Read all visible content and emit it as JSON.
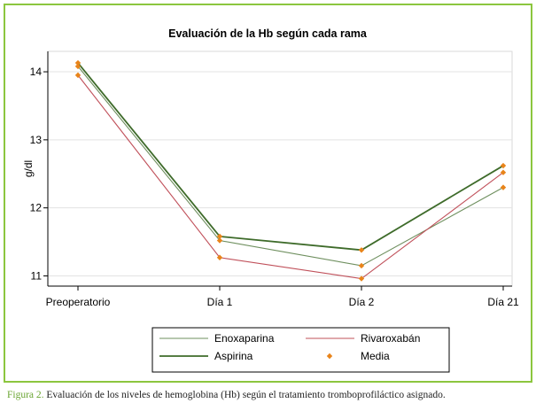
{
  "chart_data": {
    "type": "line",
    "title": "Evaluación de la Hb según cada rama",
    "xlabel": "",
    "ylabel": "g/dl",
    "categories": [
      "Preoperatorio",
      "Día 1",
      "Día 2",
      "Día 21"
    ],
    "yticks": [
      11,
      12,
      13,
      14
    ],
    "ylim": [
      10.85,
      14.3
    ],
    "grid": true,
    "legend_position": "bottom",
    "series": [
      {
        "name": "Enoxaparina",
        "color": "#6e8f5e",
        "style": "thin",
        "values": [
          14.08,
          11.52,
          11.15,
          12.3
        ]
      },
      {
        "name": "Rivaroxabán",
        "color": "#c0505a",
        "style": "thin",
        "values": [
          13.95,
          11.27,
          10.96,
          12.52
        ]
      },
      {
        "name": "Aspirina",
        "color": "#3e6b2a",
        "style": "thick",
        "values": [
          14.13,
          11.58,
          11.38,
          12.62
        ]
      }
    ],
    "mean": {
      "name": "Media",
      "color": "#e8841a",
      "values": [
        [
          14.08,
          13.95,
          14.13
        ],
        [
          11.52,
          11.27,
          11.58
        ],
        [
          11.15,
          10.96,
          11.38
        ],
        [
          12.3,
          12.52,
          12.62
        ]
      ]
    }
  },
  "caption": {
    "figure_label": "Figura 2.",
    "text": " Evaluación de los niveles de hemoglobina (Hb) según el tratamiento tromboprofiláctico asignado."
  }
}
